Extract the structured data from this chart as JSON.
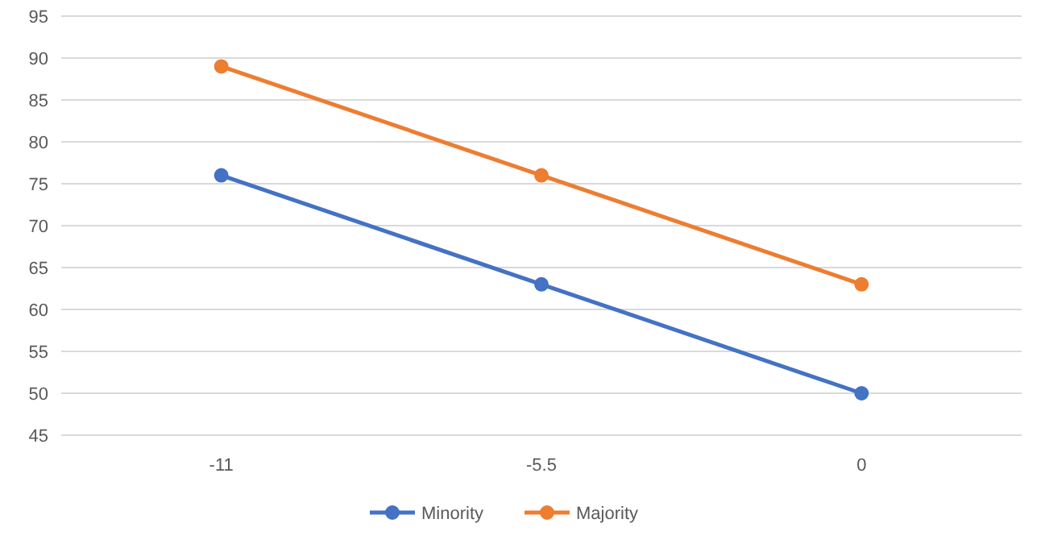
{
  "chart_data": {
    "type": "line",
    "categories": [
      "-11",
      "-5.5",
      "0"
    ],
    "series": [
      {
        "name": "Minority",
        "color": "#4472c4",
        "values": [
          76,
          63,
          50
        ]
      },
      {
        "name": "Majority",
        "color": "#ed7d31",
        "values": [
          89,
          76,
          63
        ]
      }
    ],
    "ylim": [
      45,
      95
    ],
    "yticks": [
      45,
      50,
      55,
      60,
      65,
      70,
      75,
      80,
      85,
      90,
      95
    ],
    "grid": "y",
    "legend": "bottom",
    "marker": "circle",
    "line_style": "solid"
  }
}
